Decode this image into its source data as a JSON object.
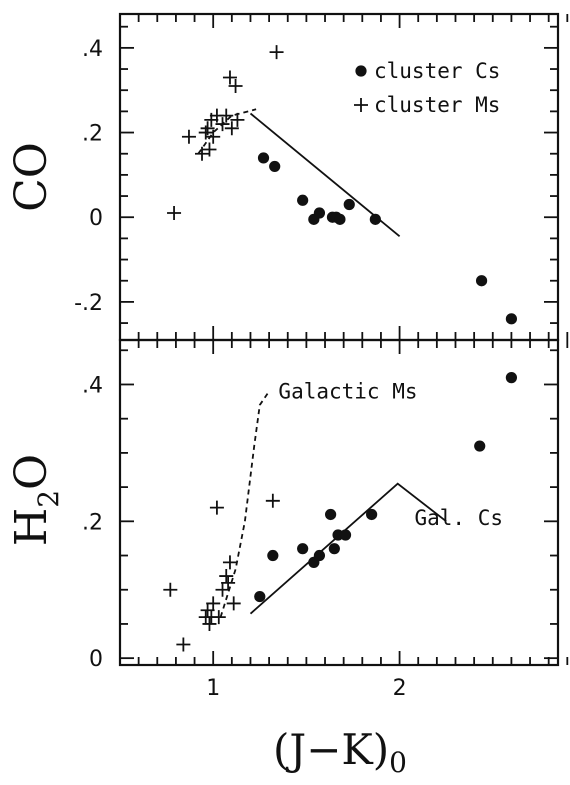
{
  "chart_data": {
    "type": "scatter",
    "x_axis": {
      "label_main": "(J−K)",
      "label_sub": "0",
      "range": [
        0.5,
        2.85
      ],
      "ticks": [
        1,
        2
      ],
      "tick_labels": [
        "1",
        "2"
      ]
    },
    "panels": [
      {
        "name": "co",
        "ylabel_main": "CO",
        "ylabel_sub": "",
        "ylim": [
          -0.29,
          0.48
        ],
        "yticks": [
          -0.2,
          0,
          0.2,
          0.4
        ],
        "ytick_labels": [
          "-.2",
          "0",
          ".2",
          ".4"
        ],
        "legend": [
          {
            "marker": "circle",
            "label": "cluster Cs"
          },
          {
            "marker": "plus",
            "label": "cluster Ms"
          }
        ],
        "series": [
          {
            "name": "cluster Cs",
            "marker": "circle",
            "points": [
              [
                1.27,
                0.14
              ],
              [
                1.33,
                0.12
              ],
              [
                1.48,
                0.04
              ],
              [
                1.54,
                -0.005
              ],
              [
                1.57,
                0.01
              ],
              [
                1.64,
                0.0
              ],
              [
                1.66,
                0.0
              ],
              [
                1.68,
                -0.005
              ],
              [
                1.73,
                0.03
              ],
              [
                1.87,
                -0.005
              ],
              [
                2.44,
                -0.15
              ],
              [
                2.6,
                -0.24
              ]
            ]
          },
          {
            "name": "cluster Ms",
            "marker": "plus",
            "points": [
              [
                0.79,
                0.01
              ],
              [
                0.87,
                0.19
              ],
              [
                0.94,
                0.15
              ],
              [
                0.96,
                0.2
              ],
              [
                0.97,
                0.21
              ],
              [
                0.98,
                0.16
              ],
              [
                0.99,
                0.23
              ],
              [
                1.0,
                0.19
              ],
              [
                1.02,
                0.24
              ],
              [
                1.05,
                0.22
              ],
              [
                1.07,
                0.24
              ],
              [
                1.09,
                0.33
              ],
              [
                1.1,
                0.21
              ],
              [
                1.12,
                0.31
              ],
              [
                1.13,
                0.23
              ],
              [
                1.34,
                0.39
              ]
            ]
          }
        ],
        "reference_lines": [
          {
            "style": "solid",
            "points": [
              [
                1.2,
                0.245
              ],
              [
                2.0,
                -0.045
              ]
            ]
          },
          {
            "style": "dashed",
            "points": [
              [
                0.92,
                0.15
              ],
              [
                1.0,
                0.2
              ],
              [
                1.1,
                0.24
              ],
              [
                1.23,
                0.255
              ]
            ]
          }
        ],
        "annotations": []
      },
      {
        "name": "h2o",
        "ylabel_main": "H",
        "ylabel_sub": "2",
        "ylabel_tail": "O",
        "ylim": [
          -0.01,
          0.465
        ],
        "yticks": [
          0,
          0.2,
          0.4
        ],
        "ytick_labels": [
          "0",
          ".2",
          ".4"
        ],
        "legend": [],
        "series": [
          {
            "name": "cluster Cs",
            "marker": "circle",
            "points": [
              [
                1.25,
                0.09
              ],
              [
                1.32,
                0.15
              ],
              [
                1.48,
                0.16
              ],
              [
                1.54,
                0.14
              ],
              [
                1.57,
                0.15
              ],
              [
                1.63,
                0.21
              ],
              [
                1.65,
                0.16
              ],
              [
                1.67,
                0.18
              ],
              [
                1.71,
                0.18
              ],
              [
                1.85,
                0.21
              ],
              [
                2.43,
                0.31
              ],
              [
                2.6,
                0.41
              ]
            ]
          },
          {
            "name": "cluster Ms",
            "marker": "plus",
            "points": [
              [
                0.77,
                0.1
              ],
              [
                0.84,
                0.02
              ],
              [
                0.96,
                0.06
              ],
              [
                0.97,
                0.07
              ],
              [
                0.98,
                0.05
              ],
              [
                0.99,
                0.06
              ],
              [
                1.0,
                0.08
              ],
              [
                1.02,
                0.22
              ],
              [
                1.03,
                0.06
              ],
              [
                1.05,
                0.1
              ],
              [
                1.07,
                0.12
              ],
              [
                1.08,
                0.11
              ],
              [
                1.09,
                0.14
              ],
              [
                1.11,
                0.08
              ],
              [
                1.32,
                0.23
              ]
            ]
          }
        ],
        "reference_lines": [
          {
            "style": "solid",
            "points": [
              [
                1.2,
                0.065
              ],
              [
                1.99,
                0.255
              ],
              [
                2.25,
                0.2
              ]
            ]
          },
          {
            "style": "dashed",
            "points": [
              [
                1.04,
                0.06
              ],
              [
                1.12,
                0.13
              ],
              [
                1.17,
                0.2
              ],
              [
                1.22,
                0.31
              ],
              [
                1.25,
                0.37
              ],
              [
                1.3,
                0.39
              ]
            ]
          }
        ],
        "annotations": [
          {
            "text": "Galactic Ms",
            "at": [
              1.35,
              0.39
            ]
          },
          {
            "text": "Gal. Cs",
            "at": [
              2.08,
              0.205
            ]
          }
        ]
      }
    ]
  }
}
